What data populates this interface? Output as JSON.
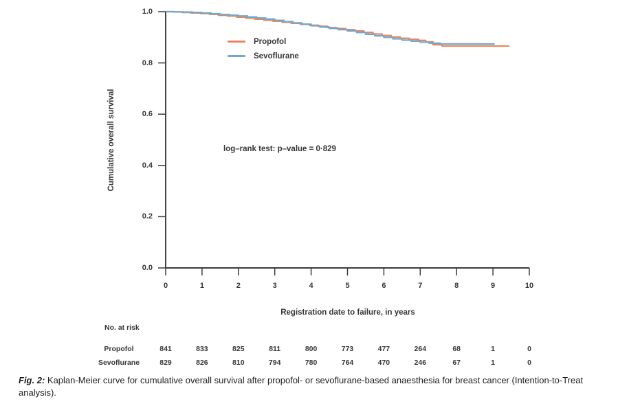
{
  "colors": {
    "propofol": "#E8875F",
    "sevoflurane": "#72A8CB",
    "axis": "#3b3b3b",
    "text": "#363636"
  },
  "chart_data": {
    "type": "line",
    "subtype": "kaplan-meier-step",
    "title": "",
    "xlabel": "Registration date to failure, in years",
    "ylabel": "Cumulative overall survival",
    "xlim": [
      0,
      10
    ],
    "ylim": [
      0.0,
      1.0
    ],
    "x_ticks": [
      "0",
      "1",
      "2",
      "3",
      "4",
      "5",
      "6",
      "7",
      "8",
      "9",
      "10"
    ],
    "y_ticks": [
      "0.0",
      "0.2",
      "0.4",
      "0.6",
      "0.8",
      "1.0"
    ],
    "grid": false,
    "legend_position": "upper-left-inside",
    "annotation": "log–rank test: p–value = 0·829",
    "legend": [
      {
        "name": "Propofol",
        "color": "#E8875F"
      },
      {
        "name": "Sevoflurane",
        "color": "#72A8CB"
      }
    ],
    "series": [
      {
        "name": "Propofol",
        "color": "#E8875F",
        "x": [
          0,
          0.2,
          0.45,
          0.7,
          0.95,
          1.2,
          1.45,
          1.7,
          1.95,
          2.2,
          2.45,
          2.7,
          2.95,
          3.2,
          3.45,
          3.7,
          3.95,
          4.2,
          4.45,
          4.7,
          4.95,
          5.2,
          5.45,
          5.7,
          5.95,
          6.2,
          6.45,
          6.7,
          6.95,
          7.15,
          7.35,
          7.6,
          9.45
        ],
        "y": [
          1.0,
          0.999,
          0.997,
          0.995,
          0.993,
          0.99,
          0.986,
          0.983,
          0.979,
          0.975,
          0.971,
          0.967,
          0.963,
          0.959,
          0.955,
          0.951,
          0.947,
          0.943,
          0.938,
          0.934,
          0.93,
          0.925,
          0.919,
          0.913,
          0.907,
          0.901,
          0.896,
          0.892,
          0.888,
          0.882,
          0.871,
          0.866,
          0.866
        ]
      },
      {
        "name": "Sevoflurane",
        "color": "#72A8CB",
        "x": [
          0,
          0.25,
          0.5,
          0.75,
          1.0,
          1.25,
          1.5,
          1.75,
          2.0,
          2.25,
          2.5,
          2.75,
          3.0,
          3.25,
          3.5,
          3.75,
          4.0,
          4.25,
          4.5,
          4.75,
          5.0,
          5.25,
          5.5,
          5.75,
          6.0,
          6.25,
          6.5,
          6.75,
          7.0,
          7.25,
          7.55,
          9.05
        ],
        "y": [
          1.0,
          0.999,
          0.998,
          0.997,
          0.995,
          0.992,
          0.989,
          0.986,
          0.983,
          0.979,
          0.975,
          0.971,
          0.966,
          0.961,
          0.956,
          0.951,
          0.945,
          0.94,
          0.935,
          0.93,
          0.925,
          0.919,
          0.912,
          0.906,
          0.9,
          0.894,
          0.889,
          0.885,
          0.881,
          0.877,
          0.874,
          0.874
        ]
      }
    ],
    "risk_table": {
      "title": "No. at risk",
      "times": [
        0,
        1,
        2,
        3,
        4,
        5,
        6,
        7,
        8,
        9,
        10
      ],
      "rows": [
        {
          "name": "Propofol",
          "counts": [
            "841",
            "833",
            "825",
            "811",
            "800",
            "773",
            "477",
            "264",
            "68",
            "1",
            "0"
          ]
        },
        {
          "name": "Sevoflurane",
          "counts": [
            "829",
            "826",
            "810",
            "794",
            "780",
            "764",
            "470",
            "246",
            "67",
            "1",
            "0"
          ]
        }
      ]
    }
  },
  "caption": {
    "label": "Fig. 2:",
    "text": " Kaplan-Meier curve for cumulative overall survival after propofol- or sevoflurane-based anaesthesia for breast cancer (Intention-to-Treat analysis)."
  }
}
